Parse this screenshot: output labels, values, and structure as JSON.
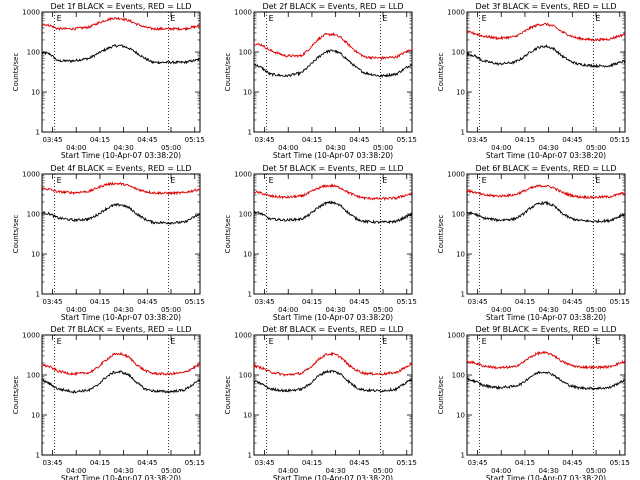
{
  "chart_data": [
    {
      "type": "line",
      "title": "Det 1f BLACK = Events, RED = LLD",
      "xlabel": "Start Time (10-Apr-07 03:38:20)",
      "ylabel": "Counts/sec",
      "yscale": "log",
      "ylim": [
        1,
        1000
      ],
      "x_range_minutes": [
        0,
        100
      ],
      "x_ticks": [
        "03:45",
        "04:00",
        "04:15",
        "04:30",
        "04:45",
        "05:00",
        "05:15"
      ],
      "y_ticks": [
        "1",
        "10",
        "100",
        "1000"
      ],
      "marker_lines_minutes": [
        8,
        80
      ],
      "marker_labels": [
        "E",
        "E"
      ],
      "series": [
        {
          "name": "Events",
          "color": "#000000",
          "x": [
            0,
            5,
            10,
            20,
            30,
            35,
            40,
            45,
            50,
            55,
            60,
            65,
            70,
            80,
            90,
            100
          ],
          "values": [
            95,
            90,
            60,
            60,
            70,
            90,
            115,
            140,
            145,
            125,
            95,
            70,
            55,
            55,
            55,
            65
          ]
        },
        {
          "name": "LLD",
          "color": "#dd0000",
          "x": [
            0,
            5,
            10,
            20,
            30,
            35,
            40,
            45,
            50,
            55,
            60,
            65,
            70,
            80,
            90,
            100
          ],
          "values": [
            500,
            460,
            380,
            380,
            420,
            520,
            620,
            700,
            690,
            610,
            500,
            420,
            380,
            380,
            380,
            450
          ]
        }
      ]
    },
    {
      "type": "line",
      "title": "Det 2f BLACK = Events, RED = LLD",
      "xlabel": "Start Time (10-Apr-07 03:38:20)",
      "ylabel": "Counts/sec",
      "yscale": "log",
      "ylim": [
        1,
        1000
      ],
      "x_range_minutes": [
        0,
        100
      ],
      "x_ticks": [
        "03:45",
        "04:00",
        "04:15",
        "04:30",
        "04:45",
        "05:00",
        "05:15"
      ],
      "y_ticks": [
        "1",
        "10",
        "100",
        "1000"
      ],
      "marker_lines_minutes": [
        8,
        80
      ],
      "marker_labels": [
        "E",
        "E"
      ],
      "series": [
        {
          "name": "Events",
          "color": "#000000",
          "x": [
            0,
            5,
            10,
            20,
            30,
            35,
            40,
            45,
            50,
            55,
            60,
            65,
            70,
            80,
            90,
            100
          ],
          "values": [
            50,
            40,
            28,
            25,
            30,
            45,
            70,
            100,
            110,
            90,
            60,
            40,
            30,
            25,
            28,
            50
          ]
        },
        {
          "name": "LLD",
          "color": "#dd0000",
          "x": [
            0,
            5,
            10,
            20,
            30,
            35,
            40,
            45,
            50,
            55,
            60,
            65,
            70,
            80,
            90,
            100
          ],
          "values": [
            160,
            150,
            110,
            80,
            80,
            120,
            200,
            270,
            280,
            230,
            150,
            100,
            75,
            70,
            75,
            120
          ]
        }
      ]
    },
    {
      "type": "line",
      "title": "Det 3f BLACK = Events, RED = LLD",
      "xlabel": "Start Time (10-Apr-07 03:38:20)",
      "ylabel": "Counts/sec",
      "yscale": "log",
      "ylim": [
        1,
        1000
      ],
      "x_range_minutes": [
        0,
        100
      ],
      "x_ticks": [
        "03:45",
        "04:00",
        "04:15",
        "04:30",
        "04:45",
        "05:00",
        "05:15"
      ],
      "y_ticks": [
        "1",
        "10",
        "100",
        "1000"
      ],
      "marker_lines_minutes": [
        8,
        80
      ],
      "marker_labels": [
        "E",
        "E"
      ],
      "series": [
        {
          "name": "Events",
          "color": "#000000",
          "x": [
            0,
            5,
            10,
            20,
            30,
            35,
            40,
            45,
            50,
            55,
            60,
            65,
            70,
            80,
            90,
            100
          ],
          "values": [
            90,
            80,
            60,
            50,
            55,
            70,
            100,
            130,
            140,
            120,
            80,
            60,
            50,
            45,
            45,
            60
          ]
        },
        {
          "name": "LLD",
          "color": "#dd0000",
          "x": [
            0,
            5,
            10,
            20,
            30,
            35,
            40,
            45,
            50,
            55,
            60,
            65,
            70,
            80,
            90,
            100
          ],
          "values": [
            320,
            290,
            250,
            220,
            240,
            300,
            400,
            480,
            500,
            440,
            320,
            260,
            220,
            200,
            210,
            280
          ]
        }
      ]
    },
    {
      "type": "line",
      "title": "Det 4f BLACK = Events, RED = LLD",
      "xlabel": "Start Time (10-Apr-07 03:38:20)",
      "ylabel": "Counts/sec",
      "yscale": "log",
      "ylim": [
        1,
        1000
      ],
      "x_range_minutes": [
        0,
        100
      ],
      "x_ticks": [
        "03:45",
        "04:00",
        "04:15",
        "04:30",
        "04:45",
        "05:00",
        "05:15"
      ],
      "y_ticks": [
        "1",
        "10",
        "100",
        "1000"
      ],
      "marker_lines_minutes": [
        8,
        80
      ],
      "marker_labels": [
        "E",
        "E"
      ],
      "series": [
        {
          "name": "Events",
          "color": "#000000",
          "x": [
            0,
            5,
            10,
            20,
            30,
            35,
            40,
            45,
            50,
            55,
            60,
            65,
            70,
            80,
            90,
            100
          ],
          "values": [
            110,
            100,
            80,
            70,
            75,
            95,
            130,
            165,
            170,
            145,
            100,
            75,
            62,
            60,
            62,
            100
          ]
        },
        {
          "name": "LLD",
          "color": "#dd0000",
          "x": [
            0,
            5,
            10,
            20,
            30,
            35,
            40,
            45,
            50,
            55,
            60,
            65,
            70,
            80,
            90,
            100
          ],
          "values": [
            440,
            410,
            360,
            340,
            370,
            450,
            540,
            580,
            570,
            510,
            420,
            370,
            340,
            330,
            340,
            420
          ]
        }
      ]
    },
    {
      "type": "line",
      "title": "Det 5f BLACK = Events, RED = LLD",
      "xlabel": "Start Time (10-Apr-07 03:38:20)",
      "ylabel": "Counts/sec",
      "yscale": "log",
      "ylim": [
        1,
        1000
      ],
      "x_range_minutes": [
        0,
        100
      ],
      "x_ticks": [
        "03:45",
        "04:00",
        "04:15",
        "04:30",
        "04:45",
        "05:00",
        "05:15"
      ],
      "y_ticks": [
        "1",
        "10",
        "100",
        "1000"
      ],
      "marker_lines_minutes": [
        8,
        80
      ],
      "marker_labels": [
        "E",
        "E"
      ],
      "series": [
        {
          "name": "Events",
          "color": "#000000",
          "x": [
            0,
            5,
            10,
            20,
            30,
            35,
            40,
            45,
            50,
            55,
            60,
            65,
            70,
            80,
            90,
            100
          ],
          "values": [
            115,
            100,
            75,
            70,
            75,
            95,
            140,
            185,
            195,
            160,
            105,
            75,
            65,
            62,
            65,
            100
          ]
        },
        {
          "name": "LLD",
          "color": "#dd0000",
          "x": [
            0,
            5,
            10,
            20,
            30,
            35,
            40,
            45,
            50,
            55,
            60,
            65,
            70,
            80,
            90,
            100
          ],
          "values": [
            360,
            330,
            280,
            260,
            280,
            340,
            430,
            500,
            510,
            450,
            340,
            280,
            250,
            240,
            250,
            330
          ]
        }
      ]
    },
    {
      "type": "line",
      "title": "Det 6f BLACK = Events, RED = LLD",
      "xlabel": "Start Time (10-Apr-07 03:38:20)",
      "ylabel": "Counts/sec",
      "yscale": "log",
      "ylim": [
        1,
        1000
      ],
      "x_range_minutes": [
        0,
        100
      ],
      "x_ticks": [
        "03:45",
        "04:00",
        "04:15",
        "04:30",
        "04:45",
        "05:00",
        "05:15"
      ],
      "y_ticks": [
        "1",
        "10",
        "100",
        "1000"
      ],
      "marker_lines_minutes": [
        8,
        80
      ],
      "marker_labels": [
        "E",
        "E"
      ],
      "series": [
        {
          "name": "Events",
          "color": "#000000",
          "x": [
            0,
            5,
            10,
            20,
            30,
            35,
            40,
            45,
            50,
            55,
            60,
            65,
            70,
            80,
            90,
            100
          ],
          "values": [
            110,
            100,
            80,
            70,
            75,
            95,
            140,
            180,
            190,
            160,
            105,
            80,
            70,
            65,
            68,
            100
          ]
        },
        {
          "name": "LLD",
          "color": "#dd0000",
          "x": [
            0,
            5,
            10,
            20,
            30,
            35,
            40,
            45,
            50,
            55,
            60,
            65,
            70,
            80,
            90,
            100
          ],
          "values": [
            380,
            350,
            300,
            280,
            300,
            360,
            440,
            500,
            510,
            450,
            350,
            300,
            270,
            260,
            270,
            340
          ]
        }
      ]
    },
    {
      "type": "line",
      "title": "Det 7f BLACK = Events, RED = LLD",
      "xlabel": "Start Time (10-Apr-07 03:38:20)",
      "ylabel": "Counts/sec",
      "yscale": "log",
      "ylim": [
        1,
        1000
      ],
      "x_range_minutes": [
        0,
        100
      ],
      "x_ticks": [
        "03:45",
        "04:00",
        "04:15",
        "04:30",
        "04:45",
        "05:00",
        "05:15"
      ],
      "y_ticks": [
        "1",
        "10",
        "100",
        "1000"
      ],
      "marker_lines_minutes": [
        8,
        80
      ],
      "marker_labels": [
        "E",
        "E"
      ],
      "series": [
        {
          "name": "Events",
          "color": "#000000",
          "x": [
            0,
            5,
            10,
            20,
            30,
            35,
            40,
            45,
            50,
            55,
            60,
            65,
            70,
            80,
            90,
            100
          ],
          "values": [
            75,
            60,
            45,
            38,
            42,
            55,
            85,
            115,
            120,
            100,
            65,
            45,
            40,
            38,
            42,
            75
          ]
        },
        {
          "name": "LLD",
          "color": "#dd0000",
          "x": [
            0,
            5,
            10,
            20,
            30,
            35,
            40,
            45,
            50,
            55,
            60,
            65,
            70,
            80,
            90,
            100
          ],
          "values": [
            180,
            160,
            125,
            105,
            115,
            150,
            230,
            320,
            340,
            280,
            180,
            130,
            110,
            105,
            115,
            185
          ]
        }
      ]
    },
    {
      "type": "line",
      "title": "Det 8f BLACK = Events, RED = LLD",
      "xlabel": "Start Time (10-Apr-07 03:38:20)",
      "ylabel": "Counts/sec",
      "yscale": "log",
      "ylim": [
        1,
        1000
      ],
      "x_range_minutes": [
        0,
        100
      ],
      "x_ticks": [
        "03:45",
        "04:00",
        "04:15",
        "04:30",
        "04:45",
        "05:00",
        "05:15"
      ],
      "y_ticks": [
        "1",
        "10",
        "100",
        "1000"
      ],
      "marker_lines_minutes": [
        8,
        80
      ],
      "marker_labels": [
        "E",
        "E"
      ],
      "series": [
        {
          "name": "Events",
          "color": "#000000",
          "x": [
            0,
            5,
            10,
            20,
            30,
            35,
            40,
            45,
            50,
            55,
            60,
            65,
            70,
            80,
            90,
            100
          ],
          "values": [
            70,
            60,
            45,
            40,
            44,
            58,
            90,
            120,
            125,
            105,
            68,
            48,
            42,
            40,
            44,
            80
          ]
        },
        {
          "name": "LLD",
          "color": "#dd0000",
          "x": [
            0,
            5,
            10,
            20,
            30,
            35,
            40,
            45,
            50,
            55,
            60,
            65,
            70,
            80,
            90,
            100
          ],
          "values": [
            170,
            150,
            120,
            100,
            110,
            145,
            230,
            320,
            340,
            280,
            175,
            130,
            110,
            105,
            115,
            190
          ]
        }
      ]
    },
    {
      "type": "line",
      "title": "Det 9f BLACK = Events, RED = LLD",
      "xlabel": "Start Time (10-Apr-07 03:38:20)",
      "ylabel": "Counts/sec",
      "yscale": "log",
      "ylim": [
        1,
        1000
      ],
      "x_range_minutes": [
        0,
        100
      ],
      "x_ticks": [
        "03:45",
        "04:00",
        "04:15",
        "04:30",
        "04:45",
        "05:00",
        "05:15"
      ],
      "y_ticks": [
        "1",
        "10",
        "100",
        "1000"
      ],
      "marker_lines_minutes": [
        8,
        80
      ],
      "marker_labels": [
        "E",
        "E"
      ],
      "series": [
        {
          "name": "Events",
          "color": "#000000",
          "x": [
            0,
            5,
            10,
            20,
            30,
            35,
            40,
            45,
            50,
            55,
            60,
            65,
            70,
            80,
            90,
            100
          ],
          "values": [
            80,
            70,
            55,
            48,
            52,
            62,
            90,
            115,
            120,
            100,
            70,
            55,
            48,
            46,
            48,
            75
          ]
        },
        {
          "name": "LLD",
          "color": "#dd0000",
          "x": [
            0,
            5,
            10,
            20,
            30,
            35,
            40,
            45,
            50,
            55,
            60,
            65,
            70,
            80,
            90,
            100
          ],
          "values": [
            220,
            200,
            170,
            150,
            160,
            200,
            280,
            350,
            360,
            310,
            220,
            180,
            160,
            155,
            160,
            220
          ]
        }
      ]
    }
  ]
}
